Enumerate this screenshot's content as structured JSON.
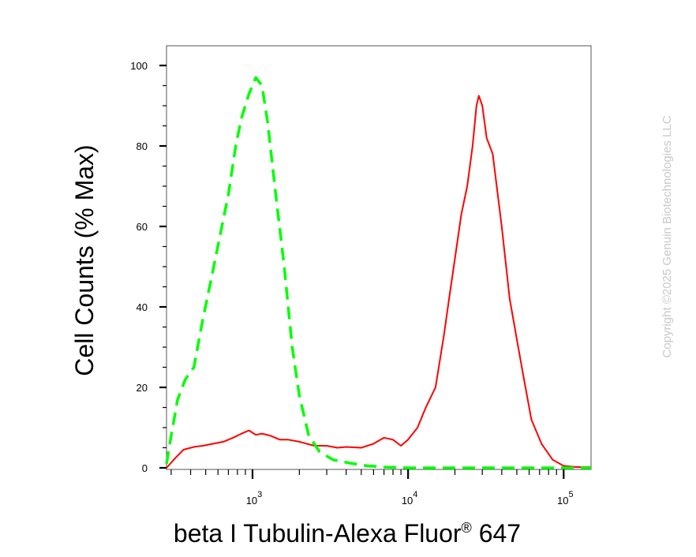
{
  "chart_data": {
    "type": "line",
    "title": "",
    "xlabel": "beta I Tubulin-Alexa Fluor",
    "xlabel_superscript": "®",
    "xlabel_suffix": " 647",
    "ylabel": "Cell Counts (% Max)",
    "xscale": "log",
    "xlim": [
      280,
      150000
    ],
    "ylim": [
      0,
      105
    ],
    "x_ticks": [
      {
        "value": 1000,
        "base": "10",
        "exp": "3"
      },
      {
        "value": 10000,
        "base": "10",
        "exp": "4"
      },
      {
        "value": 100000,
        "base": "10",
        "exp": "5"
      }
    ],
    "y_ticks": [
      "0",
      "20",
      "40",
      "60",
      "80",
      "100"
    ],
    "y_tick_values": [
      0,
      20,
      40,
      60,
      80,
      100
    ],
    "grid": false,
    "legend": "none",
    "series": [
      {
        "color": "#ff0000",
        "dash": "solid",
        "points": [
          [
            280,
            0
          ],
          [
            320,
            2.5
          ],
          [
            360,
            4.5
          ],
          [
            420,
            5.2
          ],
          [
            480,
            5.5
          ],
          [
            560,
            6
          ],
          [
            650,
            6.5
          ],
          [
            750,
            7.5
          ],
          [
            850,
            8.5
          ],
          [
            950,
            9.3
          ],
          [
            1050,
            8.2
          ],
          [
            1150,
            8.5
          ],
          [
            1300,
            8
          ],
          [
            1500,
            7
          ],
          [
            1700,
            7
          ],
          [
            2000,
            6.5
          ],
          [
            2500,
            5.5
          ],
          [
            3000,
            5.5
          ],
          [
            3500,
            5
          ],
          [
            4000,
            5.2
          ],
          [
            5000,
            5
          ],
          [
            6000,
            6
          ],
          [
            7000,
            7.5
          ],
          [
            8000,
            7
          ],
          [
            9000,
            5.5
          ],
          [
            10000,
            7
          ],
          [
            11500,
            10
          ],
          [
            13000,
            15
          ],
          [
            15000,
            20
          ],
          [
            17000,
            33
          ],
          [
            18500,
            43
          ],
          [
            20000,
            52
          ],
          [
            22000,
            63
          ],
          [
            24000,
            70
          ],
          [
            26000,
            80
          ],
          [
            27500,
            90
          ],
          [
            28500,
            92.5
          ],
          [
            30000,
            90
          ],
          [
            32000,
            82
          ],
          [
            35000,
            78
          ],
          [
            40000,
            60
          ],
          [
            45000,
            42
          ],
          [
            50000,
            32
          ],
          [
            55000,
            23
          ],
          [
            62000,
            12
          ],
          [
            72000,
            6
          ],
          [
            85000,
            2
          ],
          [
            100000,
            0.5
          ],
          [
            120000,
            0.2
          ],
          [
            150000,
            0.2
          ]
        ]
      },
      {
        "color": "#00ff00",
        "dash": "dashed",
        "points": [
          [
            280,
            1
          ],
          [
            300,
            8
          ],
          [
            330,
            17
          ],
          [
            370,
            22
          ],
          [
            420,
            25
          ],
          [
            480,
            37
          ],
          [
            550,
            48
          ],
          [
            620,
            58
          ],
          [
            700,
            68
          ],
          [
            780,
            80
          ],
          [
            850,
            87
          ],
          [
            950,
            93
          ],
          [
            1050,
            97
          ],
          [
            1150,
            95
          ],
          [
            1250,
            86
          ],
          [
            1400,
            69
          ],
          [
            1600,
            50
          ],
          [
            1800,
            30
          ],
          [
            2000,
            18
          ],
          [
            2300,
            8
          ],
          [
            2700,
            4
          ],
          [
            3300,
            2
          ],
          [
            4200,
            1.2
          ],
          [
            5500,
            0.5
          ],
          [
            7000,
            0.2
          ],
          [
            10000,
            0
          ],
          [
            150000,
            0
          ]
        ]
      }
    ],
    "annotation": "Copyright ©2025 Genuin Biotechnologies LLC"
  }
}
